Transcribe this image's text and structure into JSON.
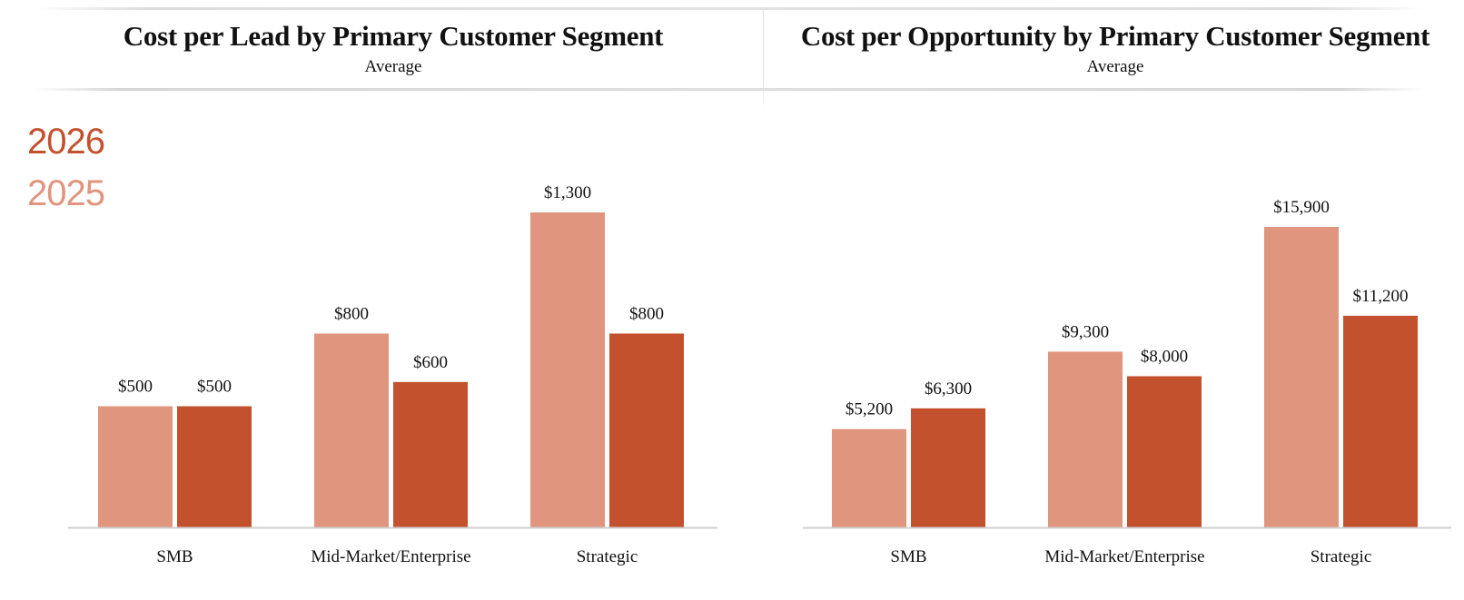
{
  "legend": {
    "items": [
      {
        "label": "2026",
        "color": "#c4512e"
      },
      {
        "label": "2025",
        "color": "#e0957e"
      }
    ]
  },
  "chart_data": [
    {
      "type": "bar",
      "title": "Cost per Lead by Primary Customer Segment",
      "subtitle": "Average",
      "categories": [
        "SMB",
        "Mid-Market/Enterprise",
        "Strategic"
      ],
      "series": [
        {
          "name": "2025",
          "color": "#e0957e",
          "values": [
            500,
            800,
            1300
          ],
          "labels": [
            "$500",
            "$800",
            "$1,300"
          ]
        },
        {
          "name": "2026",
          "color": "#c4512e",
          "values": [
            500,
            600,
            800
          ],
          "labels": [
            "$500",
            "$600",
            "$800"
          ]
        }
      ],
      "ylim": [
        0,
        1300
      ]
    },
    {
      "type": "bar",
      "title": "Cost per Opportunity by Primary Customer Segment",
      "subtitle": "Average",
      "categories": [
        "SMB",
        "Mid-Market/Enterprise",
        "Strategic"
      ],
      "series": [
        {
          "name": "2025",
          "color": "#e0957e",
          "values": [
            5200,
            9300,
            15900
          ],
          "labels": [
            "$5,200",
            "$9,300",
            "$15,900"
          ]
        },
        {
          "name": "2026",
          "color": "#c4512e",
          "values": [
            6300,
            8000,
            11200
          ],
          "labels": [
            "$6,300",
            "$8,000",
            "$11,200"
          ]
        }
      ],
      "ylim": [
        0,
        15900
      ]
    }
  ]
}
